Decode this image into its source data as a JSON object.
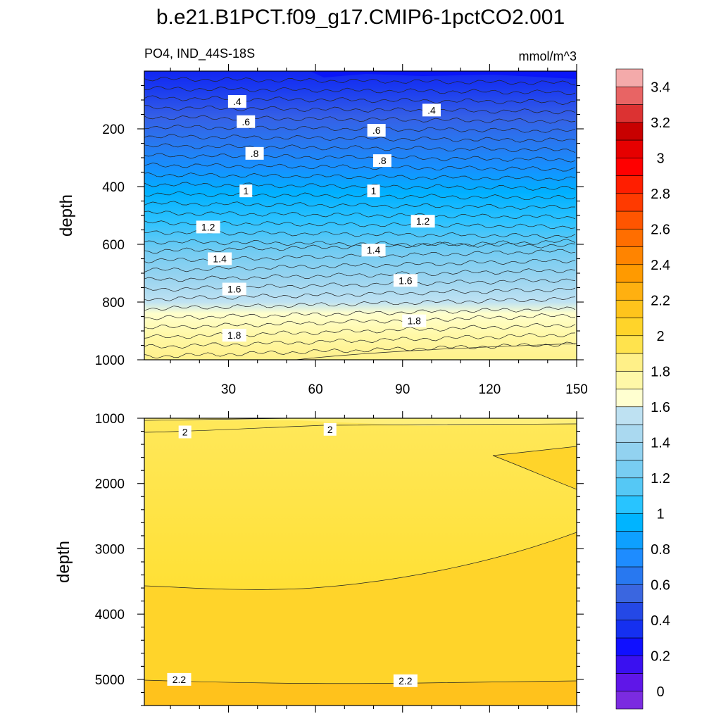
{
  "chart_data": [
    {
      "type": "contour",
      "title": "b.e21.B1PCT.f09_g17.CMIP6-1pctCO2.001",
      "subtitle_left": "PO4, IND_44S-18S",
      "subtitle_right": "mmol/m^3",
      "ylabel": "depth",
      "xlim": [
        1,
        150
      ],
      "ylim": [
        0,
        1000
      ],
      "y_reversed": true,
      "x_ticks": [
        "30",
        "60",
        "90",
        "120",
        "150"
      ],
      "y_ticks": [
        "200",
        "400",
        "600",
        "800",
        "1000"
      ],
      "contour_labels": [
        {
          "text": ".4",
          "x": 33,
          "y": 105
        },
        {
          "text": ".4",
          "x": 100,
          "y": 135
        },
        {
          "text": ".6",
          "x": 36,
          "y": 175
        },
        {
          "text": ".6",
          "x": 81,
          "y": 205
        },
        {
          "text": ".8",
          "x": 39,
          "y": 285
        },
        {
          "text": ".8",
          "x": 83,
          "y": 310
        },
        {
          "text": "1",
          "x": 36,
          "y": 415
        },
        {
          "text": "1",
          "x": 80,
          "y": 415
        },
        {
          "text": "1.2",
          "x": 23,
          "y": 540
        },
        {
          "text": "1.2",
          "x": 97,
          "y": 520
        },
        {
          "text": "1.4",
          "x": 27,
          "y": 650
        },
        {
          "text": "1.4",
          "x": 80,
          "y": 620
        },
        {
          "text": "1.6",
          "x": 32,
          "y": 755
        },
        {
          "text": "1.6",
          "x": 91,
          "y": 725
        },
        {
          "text": "1.8",
          "x": 32,
          "y": 915
        },
        {
          "text": "1.8",
          "x": 94,
          "y": 865
        }
      ]
    },
    {
      "type": "contour",
      "ylabel": "depth",
      "xlim": [
        1,
        150
      ],
      "ylim": [
        1000,
        5400
      ],
      "y_reversed": true,
      "y_ticks": [
        "1000",
        "2000",
        "3000",
        "4000",
        "5000"
      ],
      "contour_labels": [
        {
          "text": "2",
          "x": 15,
          "y": 1210
        },
        {
          "text": "2",
          "x": 65,
          "y": 1170
        },
        {
          "text": "2.2",
          "x": 13,
          "y": 5000
        },
        {
          "text": "2.2",
          "x": 91,
          "y": 5020
        }
      ]
    }
  ],
  "colorbar": {
    "labels": [
      "0",
      "0.2",
      "0.4",
      "0.6",
      "0.8",
      "1",
      "1.2",
      "1.4",
      "1.6",
      "1.8",
      "2",
      "2.2",
      "2.4",
      "2.6",
      "2.8",
      "3",
      "3.2",
      "3.4"
    ],
    "colors": [
      "#7b2be0",
      "#5f16e8",
      "#3a10f0",
      "#1010ff",
      "#1530f0",
      "#2448e6",
      "#3a66e0",
      "#2878f0",
      "#1e8cff",
      "#0ea0ff",
      "#00b4ff",
      "#28c4ff",
      "#55c8f5",
      "#78cdf2",
      "#92d2f0",
      "#aad9f0",
      "#bee1f2",
      "#ffffd0",
      "#fff8a8",
      "#fff088",
      "#ffe34d",
      "#ffd42a",
      "#ffc41c",
      "#ffb010",
      "#ff9a00",
      "#ff8400",
      "#ff6e00",
      "#ff5500",
      "#ff3a00",
      "#ff1e00",
      "#ff0000",
      "#e60000",
      "#c80000",
      "#dc3232",
      "#e86464",
      "#f4aaaa"
    ]
  }
}
